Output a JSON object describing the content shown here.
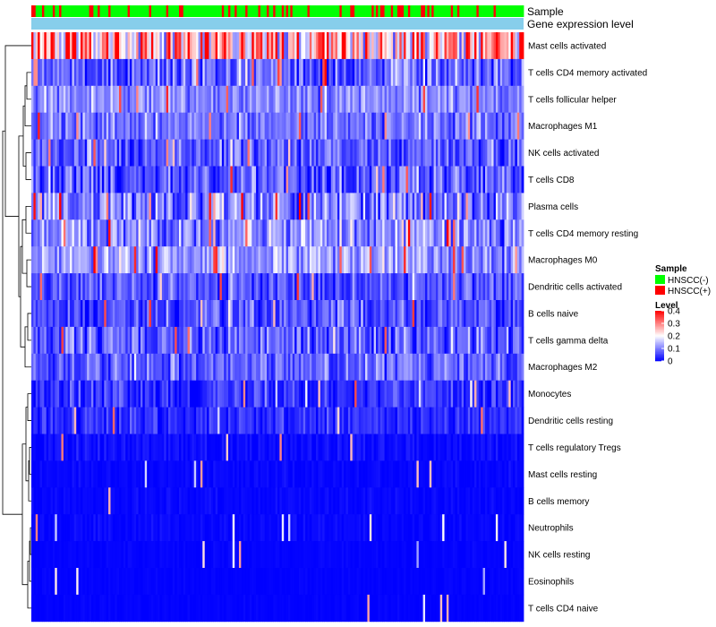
{
  "chart_data": {
    "type": "heatmap",
    "title": "",
    "annotation_labels": {
      "sample": "Sample",
      "level": "Gene expression level"
    },
    "rows": [
      {
        "name": "Mast cells activated",
        "mean": 0.22,
        "spread": 0.15,
        "spikes": 0.3
      },
      {
        "name": "T cells CD4 memory activated",
        "mean": 0.08,
        "spread": 0.09,
        "spikes": 0.04
      },
      {
        "name": "T cells follicular helper",
        "mean": 0.11,
        "spread": 0.06,
        "spikes": 0.03
      },
      {
        "name": "Macrophages M1",
        "mean": 0.09,
        "spread": 0.06,
        "spikes": 0.03
      },
      {
        "name": "NK cells activated",
        "mean": 0.07,
        "spread": 0.07,
        "spikes": 0.03
      },
      {
        "name": "T cells CD8",
        "mean": 0.07,
        "spread": 0.08,
        "spikes": 0.04
      },
      {
        "name": "Plasma cells",
        "mean": 0.1,
        "spread": 0.09,
        "spikes": 0.06
      },
      {
        "name": "T cells CD4 memory resting",
        "mean": 0.11,
        "spread": 0.08,
        "spikes": 0.04
      },
      {
        "name": "Macrophages M0",
        "mean": 0.12,
        "spread": 0.07,
        "spikes": 0.05
      },
      {
        "name": "Dendritic cells activated",
        "mean": 0.06,
        "spread": 0.06,
        "spikes": 0.03
      },
      {
        "name": "B cells naive",
        "mean": 0.06,
        "spread": 0.07,
        "spikes": 0.03
      },
      {
        "name": "T cells gamma delta",
        "mean": 0.07,
        "spread": 0.07,
        "spikes": 0.03
      },
      {
        "name": "Macrophages M2",
        "mean": 0.08,
        "spread": 0.06,
        "spikes": 0.02
      },
      {
        "name": "Monocytes",
        "mean": 0.04,
        "spread": 0.05,
        "spikes": 0.02
      },
      {
        "name": "Dendritic cells resting",
        "mean": 0.03,
        "spread": 0.04,
        "spikes": 0.02
      },
      {
        "name": "T cells regulatory  Tregs",
        "mean": 0.01,
        "spread": 0.02,
        "spikes": 0.02
      },
      {
        "name": "Mast cells resting",
        "mean": 0.005,
        "spread": 0.01,
        "spikes": 0.02
      },
      {
        "name": "B cells memory",
        "mean": 0.005,
        "spread": 0.01,
        "spikes": 0.02
      },
      {
        "name": "Neutrophils",
        "mean": 0.005,
        "spread": 0.01,
        "spikes": 0.015
      },
      {
        "name": "NK cells resting",
        "mean": 0.003,
        "spread": 0.005,
        "spikes": 0.015
      },
      {
        "name": "Eosinophils",
        "mean": 0.002,
        "spread": 0.004,
        "spikes": 0.01
      },
      {
        "name": "T cells CD4 naive",
        "mean": 0.002,
        "spread": 0.004,
        "spikes": 0.015
      }
    ],
    "n_samples": 230,
    "hnscc_pos_fraction": 0.22,
    "color_scale": {
      "low": "#0000FF",
      "mid": "#FFFFFF",
      "high": "#FF0000",
      "min": 0,
      "mid_value": 0.2,
      "max": 0.4
    },
    "legend": {
      "position": "right",
      "sample_title": "Sample",
      "sample_entries": [
        {
          "label": "HNSCC(-)",
          "color": "#00FF00"
        },
        {
          "label": "HNSCC(+)",
          "color": "#FF0000"
        }
      ],
      "level_title": "Level",
      "level_ticks": [
        "0.4",
        "0.3",
        "0.2",
        "0.1",
        "0"
      ]
    },
    "annotation_bar_color": "#87CEEB"
  }
}
